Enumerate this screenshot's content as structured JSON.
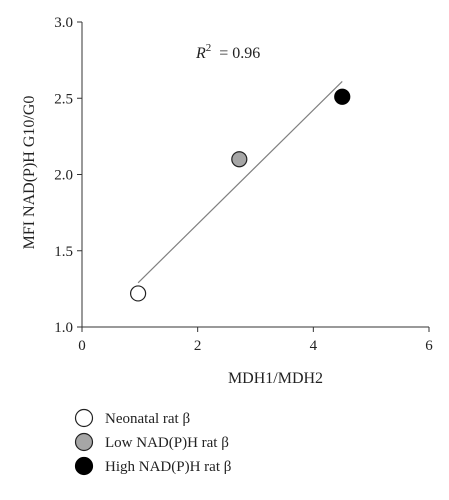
{
  "chart_data": {
    "type": "scatter",
    "xlabel": "MDH1/MDH2",
    "ylabel": "MFI NAD(P)H G10/G0",
    "xlim": [
      0,
      6
    ],
    "ylim": [
      1.0,
      3.0
    ],
    "x_ticks": [
      "0",
      "2",
      "4",
      "6"
    ],
    "y_ticks": [
      "1.0",
      "1.5",
      "2.0",
      "2.5",
      "3.0"
    ],
    "grid": false,
    "legend_position": "bottom-left",
    "annotation": {
      "r2_symbol": "R",
      "r2_superscript": "2",
      "r2_value": "= 0.96"
    },
    "trendline": {
      "x": [
        0.97,
        4.5
      ],
      "y": [
        1.29,
        2.61
      ],
      "color": "#808080"
    },
    "series": [
      {
        "name": "Neonatal rat β",
        "x": [
          0.97
        ],
        "y": [
          1.22
        ],
        "color": "#ffffff",
        "stroke": "#222222"
      },
      {
        "name": "Low NAD(P)H rat β",
        "x": [
          2.72
        ],
        "y": [
          2.1
        ],
        "color": "#a6a6a6",
        "stroke": "#222222"
      },
      {
        "name": "High NAD(P)H rat β",
        "x": [
          4.5
        ],
        "y": [
          2.51
        ],
        "color": "#000000",
        "stroke": "#000000"
      }
    ]
  }
}
